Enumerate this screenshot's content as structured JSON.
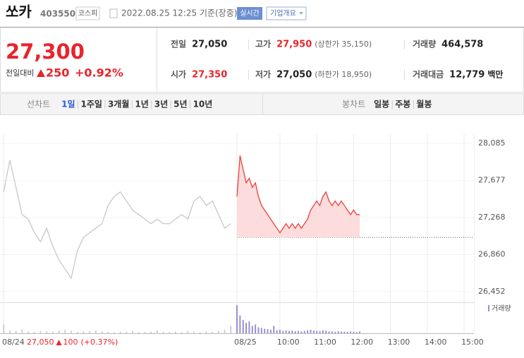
{
  "header": {
    "name": "쏘카",
    "code": "403550",
    "market": "코스피",
    "time": "2022.08.25 12:25 기준(장중)",
    "realtime": "실시간",
    "company": "기업개요"
  },
  "quote": {
    "price": "27,300",
    "change_label": "전일대비",
    "change": "250",
    "pct": "+0.92%"
  },
  "stats": [
    {
      "label": "전일",
      "value": "27,050"
    },
    {
      "label": "고가",
      "value": "27,950",
      "note": "(상한가 35,150)",
      "color": "#e8242b"
    },
    {
      "label": "거래량",
      "value": "464,578"
    },
    {
      "label": "시가",
      "value": "27,350",
      "color": "#e8242b"
    },
    {
      "label": "저가",
      "value": "27,050",
      "note": "(하한가 18,950)"
    },
    {
      "label": "거래대금",
      "value": "12,779",
      "unit": "백만"
    }
  ],
  "tabs": {
    "line_label": "선차트",
    "periods": [
      "1일",
      "1주일",
      "3개월",
      "1년",
      "3년",
      "5년",
      "10년"
    ],
    "selected": 0,
    "candle_label": "봉차트",
    "candles": [
      "일봉",
      "주봉",
      "월봉"
    ]
  },
  "chart_data": {
    "type": "line",
    "ylim": [
      26335,
      28186
    ],
    "yticks": [
      {
        "value": 28085,
        "label": "28,085"
      },
      {
        "value": 27677,
        "label": "27,677"
      },
      {
        "value": 27268,
        "label": "27,268"
      },
      {
        "value": 26860,
        "label": "26,860"
      },
      {
        "value": 26452,
        "label": "26,452"
      }
    ],
    "xlim": [
      -6,
      766
    ],
    "xticks": [
      {
        "value": 0,
        "label": "08/24"
      },
      {
        "value": 380,
        "label": "08/25"
      },
      {
        "value": 450,
        "label": "10:00"
      },
      {
        "value": 510,
        "label": "11:00"
      },
      {
        "value": 570,
        "label": "12:00"
      },
      {
        "value": 630,
        "label": "13:00"
      },
      {
        "value": 690,
        "label": "14:00"
      },
      {
        "value": 750,
        "label": "15:00"
      }
    ],
    "baseline": 27050,
    "volume_label": "거래량",
    "volume_lim": [
      0,
      100
    ],
    "prev_close": {
      "value": "27,050",
      "change": "100",
      "pct": "(+0.37%)"
    },
    "series": [
      {
        "color": "#c8c8c8",
        "volume_color": "#cfcfcf",
        "x": [
          0,
          10,
          20,
          30,
          40,
          50,
          60,
          70,
          80,
          90,
          100,
          110,
          120,
          130,
          140,
          150,
          160,
          170,
          180,
          190,
          200,
          210,
          220,
          230,
          240,
          250,
          260,
          270,
          280,
          290,
          300,
          310,
          320,
          330,
          340,
          350,
          360,
          370
        ],
        "values": [
          27550,
          27900,
          27600,
          27300,
          27250,
          27100,
          27000,
          27150,
          26950,
          26800,
          26700,
          26600,
          26900,
          27050,
          27100,
          27150,
          27200,
          27400,
          27500,
          27550,
          27450,
          27350,
          27300,
          27250,
          27200,
          27250,
          27200,
          27200,
          27250,
          27300,
          27250,
          27450,
          27500,
          27400,
          27450,
          27300,
          27150,
          27200
        ],
        "volume": [
          30,
          10,
          8,
          12,
          6,
          5,
          8,
          6,
          5,
          10,
          12,
          8,
          5,
          6,
          8,
          10,
          6,
          5,
          4,
          6,
          5,
          8,
          4,
          5,
          6,
          10,
          5,
          4,
          6,
          4,
          8,
          5,
          4,
          6,
          5,
          8,
          12,
          25
        ]
      },
      {
        "color": "#e8413c",
        "fill": "#fcdcdc",
        "volume_color": "#9b8ed0",
        "x": [
          380,
          385,
          390,
          395,
          400,
          405,
          410,
          415,
          420,
          425,
          430,
          435,
          440,
          445,
          450,
          455,
          460,
          465,
          470,
          475,
          480,
          485,
          490,
          495,
          500,
          505,
          510,
          515,
          520,
          525,
          530,
          535,
          540,
          545,
          550,
          555,
          560,
          565,
          570,
          575,
          580
        ],
        "values": [
          27500,
          27950,
          27800,
          27650,
          27700,
          27600,
          27650,
          27500,
          27400,
          27350,
          27300,
          27250,
          27200,
          27150,
          27100,
          27150,
          27200,
          27150,
          27200,
          27150,
          27200,
          27150,
          27200,
          27250,
          27350,
          27400,
          27450,
          27400,
          27500,
          27550,
          27450,
          27400,
          27450,
          27400,
          27450,
          27400,
          27350,
          27300,
          27350,
          27300,
          27300
        ],
        "volume": [
          95,
          60,
          45,
          35,
          40,
          25,
          30,
          20,
          18,
          15,
          14,
          12,
          25,
          10,
          12,
          8,
          10,
          8,
          9,
          7,
          8,
          6,
          8,
          10,
          12,
          9,
          8,
          7,
          10,
          9,
          6,
          6,
          5,
          7,
          6,
          5,
          5,
          6,
          5,
          4,
          6
        ]
      }
    ]
  }
}
